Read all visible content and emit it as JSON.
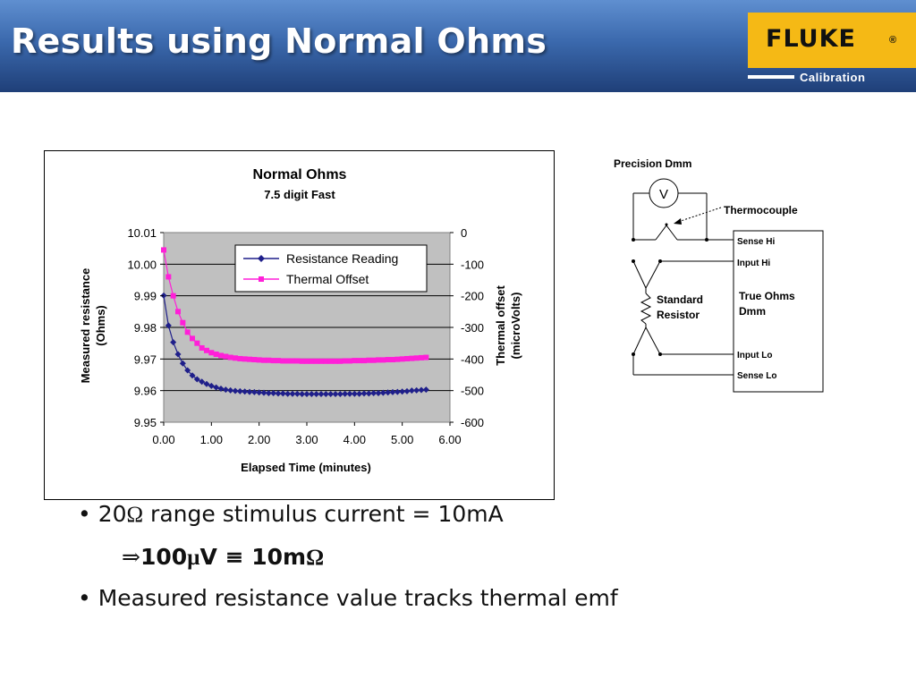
{
  "slide": {
    "title": "Results using Normal Ohms",
    "logo": {
      "brand": "FLUKE",
      "registered": "®",
      "sub": "Calibration"
    }
  },
  "chart_data": {
    "type": "line",
    "title": "Normal Ohms",
    "subtitle": "7.5 digit Fast",
    "xlabel": "Elapsed Time (minutes)",
    "ylabel_left": [
      "Measured resistance",
      "(Ohms)"
    ],
    "ylabel_right": [
      "Thermal offset",
      "(microVolts)"
    ],
    "xlim": [
      0,
      6
    ],
    "ylim_left": [
      9.95,
      10.01
    ],
    "ylim_right": [
      -600,
      0
    ],
    "x_ticks": [
      "0.00",
      "1.00",
      "2.00",
      "3.00",
      "4.00",
      "5.00",
      "6.00"
    ],
    "y_ticks_left": [
      "10.01",
      "10.00",
      "9.99",
      "9.98",
      "9.97",
      "9.96",
      "9.95"
    ],
    "y_ticks_right": [
      "0",
      "-100",
      "-200",
      "-300",
      "-400",
      "-500",
      "-600"
    ],
    "grid": true,
    "legend_position": "top-right",
    "x": [
      0,
      0.1,
      0.2,
      0.3,
      0.4,
      0.5,
      0.6,
      0.7,
      0.8,
      0.9,
      1.0,
      1.1,
      1.2,
      1.3,
      1.4,
      1.5,
      1.6,
      1.7,
      1.8,
      1.9,
      2.0,
      2.1,
      2.2,
      2.3,
      2.4,
      2.5,
      2.6,
      2.7,
      2.8,
      2.9,
      3.0,
      3.1,
      3.2,
      3.3,
      3.4,
      3.5,
      3.6,
      3.7,
      3.8,
      3.9,
      4.0,
      4.1,
      4.2,
      4.3,
      4.4,
      4.5,
      4.6,
      4.7,
      4.8,
      4.9,
      5.0,
      5.1,
      5.2,
      5.3,
      5.4,
      5.5
    ],
    "series": [
      {
        "name": "Resistance Reading",
        "axis": "left",
        "color": "#1f1f8a",
        "marker": "diamond",
        "values": [
          9.9901,
          9.9806,
          9.9753,
          9.9715,
          9.9686,
          9.9664,
          9.9648,
          9.9636,
          9.9628,
          9.9621,
          9.9615,
          9.961,
          9.9606,
          9.9603,
          9.9601,
          9.9599,
          9.9598,
          9.9597,
          9.9596,
          9.9595,
          9.9594,
          9.9593,
          9.9592,
          9.9592,
          9.9591,
          9.9591,
          9.959,
          9.959,
          9.959,
          9.9589,
          9.9589,
          9.9589,
          9.9589,
          9.9589,
          9.9589,
          9.9589,
          9.9589,
          9.9589,
          9.959,
          9.959,
          9.959,
          9.959,
          9.9591,
          9.9591,
          9.9592,
          9.9592,
          9.9593,
          9.9594,
          9.9595,
          9.9596,
          9.9597,
          9.9598,
          9.96,
          9.9601,
          9.9602,
          9.9603
        ]
      },
      {
        "name": "Thermal Offset",
        "axis": "right",
        "color": "#ff1fd8",
        "marker": "square",
        "values": [
          -55,
          -140,
          -200,
          -250,
          -285,
          -315,
          -335,
          -350,
          -365,
          -373,
          -380,
          -385,
          -389,
          -392,
          -395,
          -397,
          -399,
          -400,
          -401,
          -402,
          -403,
          -404,
          -404,
          -405,
          -405,
          -406,
          -406,
          -406,
          -406,
          -407,
          -407,
          -407,
          -407,
          -407,
          -407,
          -407,
          -407,
          -407,
          -406,
          -406,
          -405,
          -405,
          -405,
          -404,
          -404,
          -403,
          -403,
          -402,
          -402,
          -401,
          -400,
          -399,
          -398,
          -397,
          -396,
          -395
        ]
      }
    ]
  },
  "schematic": {
    "dmm_label": "Precision Dmm",
    "voltmeter": "V",
    "thermocouple": "Thermocouple",
    "resistor_label": [
      "Standard",
      "Resistor"
    ],
    "meter_label": [
      "True Ohms",
      "Dmm"
    ],
    "terminals": [
      "Sense Hi",
      "Input Hi",
      "Input Lo",
      "Sense Lo"
    ]
  },
  "bullets": {
    "b1_prefix": "• 20",
    "b1_symbol": "Ω",
    "b1_suffix": " range stimulus current = 10mA",
    "b2_arrow": "⇒",
    "b2_a": "100",
    "b2_mu": "µ",
    "b2_b": "V ",
    "b2_equiv": "≡",
    "b2_c": " 10m",
    "b2_omega": "Ω",
    "b3": "• Measured resistance value tracks thermal emf"
  }
}
